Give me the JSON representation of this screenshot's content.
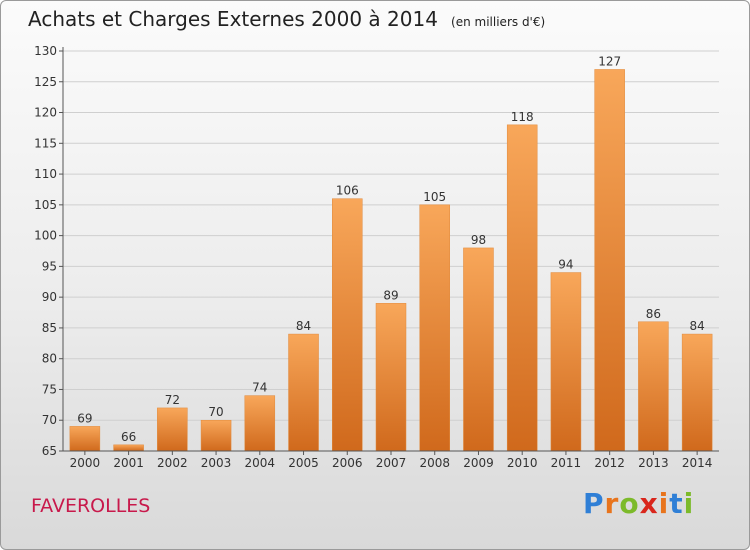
{
  "title": "Achats et Charges Externes 2000 à 2014",
  "subtitle": "(en milliers d'€)",
  "commune": "FAVEROLLES",
  "brand": {
    "text": "Proxiti",
    "letter_colors": [
      "#2f7fd6",
      "#e8741c",
      "#7cba2a",
      "#d9261c",
      "#e8741c",
      "#2f7fd6",
      "#7cba2a"
    ]
  },
  "colors": {
    "bar_top": "#f8a75a",
    "bar_bottom": "#d0691c",
    "axis": "#555555",
    "grid": "#cfcfcf",
    "commune": "#c8194b"
  },
  "chart_data": {
    "type": "bar",
    "categories": [
      "2000",
      "2001",
      "2002",
      "2003",
      "2004",
      "2005",
      "2006",
      "2007",
      "2008",
      "2009",
      "2010",
      "2011",
      "2012",
      "2013",
      "2014"
    ],
    "values": [
      69,
      66,
      72,
      70,
      74,
      84,
      106,
      89,
      105,
      98,
      118,
      94,
      127,
      86,
      84
    ],
    "ylim": [
      65,
      130
    ],
    "yticks": [
      65,
      70,
      75,
      80,
      85,
      90,
      95,
      100,
      105,
      110,
      115,
      120,
      125,
      130
    ],
    "grid": true
  }
}
